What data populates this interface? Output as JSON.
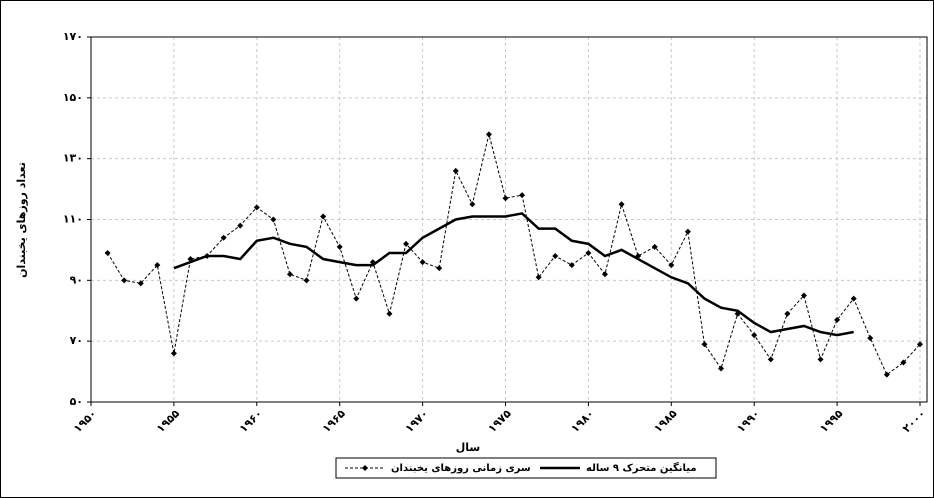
{
  "chart_data": {
    "type": "line",
    "x_label": "سال",
    "y_label": "تعداد روزهای یخبندان",
    "x": [
      1951,
      1952,
      1953,
      1954,
      1955,
      1956,
      1957,
      1958,
      1959,
      1960,
      1961,
      1962,
      1963,
      1964,
      1965,
      1966,
      1967,
      1968,
      1969,
      1970,
      1971,
      1972,
      1973,
      1974,
      1975,
      1976,
      1977,
      1978,
      1979,
      1980,
      1981,
      1982,
      1983,
      1984,
      1985,
      1986,
      1987,
      1988,
      1989,
      1990,
      1991,
      1992,
      1993,
      1994,
      1995,
      1996,
      1997,
      1998,
      1999,
      2000
    ],
    "series": [
      {
        "name": "سری زمانی روزهای یخبندان",
        "color": "#000000",
        "dashed": true,
        "markers": true,
        "values": [
          99,
          90,
          89,
          95,
          66,
          97,
          98,
          104,
          108,
          114,
          110,
          92,
          90,
          111,
          101,
          84,
          96,
          79,
          102,
          96,
          94,
          126,
          115,
          138,
          117,
          118,
          91,
          98,
          95,
          99,
          92,
          115,
          98,
          101,
          95,
          106,
          69,
          61,
          79,
          72,
          64,
          79,
          85,
          64,
          77,
          84,
          71,
          59,
          63,
          69
        ]
      },
      {
        "name": "میانگین متحرک ۹ ساله",
        "color": "#000000",
        "dashed": false,
        "markers": false,
        "values": [
          null,
          null,
          null,
          null,
          94,
          96,
          98,
          98,
          97,
          103,
          104,
          102,
          101,
          97,
          96,
          95,
          95,
          99,
          99,
          104,
          107,
          110,
          111,
          111,
          111,
          112,
          107,
          107,
          103,
          102,
          98,
          100,
          97,
          94,
          91,
          89,
          84,
          81,
          80,
          76,
          73,
          74,
          75,
          73,
          72,
          73,
          null,
          null,
          null,
          null
        ]
      }
    ],
    "xlim": [
      1950,
      2000
    ],
    "ylim": [
      50,
      170
    ],
    "xticks": [
      {
        "value": 1950,
        "label": "۱۹۵۰"
      },
      {
        "value": 1955,
        "label": "۱۹۵۵"
      },
      {
        "value": 1960,
        "label": "۱۹۶۰"
      },
      {
        "value": 1965,
        "label": "۱۹۶۵"
      },
      {
        "value": 1970,
        "label": "۱۹۷۰"
      },
      {
        "value": 1975,
        "label": "۱۹۷۵"
      },
      {
        "value": 1980,
        "label": "۱۹۸۰"
      },
      {
        "value": 1985,
        "label": "۱۹۸۵"
      },
      {
        "value": 1990,
        "label": "۱۹۹۰"
      },
      {
        "value": 1995,
        "label": "۱۹۹۵"
      },
      {
        "value": 2000,
        "label": "۲۰۰۰"
      }
    ],
    "yticks": [
      {
        "value": 50,
        "label": "۵۰"
      },
      {
        "value": 70,
        "label": "۷۰"
      },
      {
        "value": 90,
        "label": "۹۰"
      },
      {
        "value": 110,
        "label": "۱۱۰"
      },
      {
        "value": 130,
        "label": "۱۳۰"
      },
      {
        "value": 150,
        "label": "۱۵۰"
      },
      {
        "value": 170,
        "label": "۱۷۰"
      }
    ],
    "grid": true,
    "legend": "bottom"
  }
}
